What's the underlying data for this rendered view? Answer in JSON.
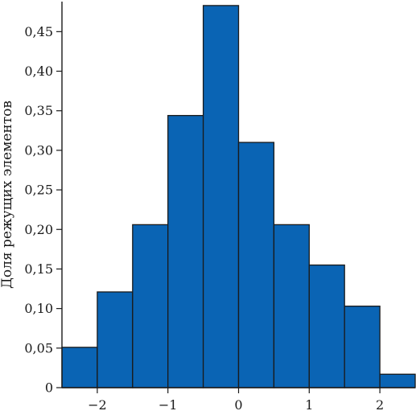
{
  "chart_data": {
    "type": "bar",
    "title": "",
    "xlabel": "",
    "ylabel": "Доля режущих элементов",
    "bar_color": "#0a64b4",
    "edge_color": "#1a1a1a",
    "bins": [
      {
        "x0": -2.5,
        "x1": -2.0,
        "value": 0.051
      },
      {
        "x0": -2.0,
        "x1": -1.5,
        "value": 0.121
      },
      {
        "x0": -1.5,
        "x1": -1.0,
        "value": 0.206
      },
      {
        "x0": -1.0,
        "x1": -0.5,
        "value": 0.344
      },
      {
        "x0": -0.5,
        "x1": 0.0,
        "value": 0.483
      },
      {
        "x0": 0.0,
        "x1": 0.5,
        "value": 0.31
      },
      {
        "x0": 0.5,
        "x1": 1.0,
        "value": 0.206
      },
      {
        "x0": 1.0,
        "x1": 1.5,
        "value": 0.155
      },
      {
        "x0": 1.5,
        "x1": 2.0,
        "value": 0.103
      },
      {
        "x0": 2.0,
        "x1": 2.5,
        "value": 0.017
      }
    ],
    "xlim": [
      -2.5,
      2.5
    ],
    "ylim": [
      0,
      0.49
    ],
    "xticks": [
      -2,
      -1,
      0,
      1,
      2
    ],
    "xtick_labels": [
      "−2",
      "−1",
      "0",
      "1",
      "2"
    ],
    "yticks": [
      0,
      0.05,
      0.1,
      0.15,
      0.2,
      0.25,
      0.3,
      0.35,
      0.4,
      0.45
    ],
    "ytick_labels": [
      "0",
      "0,05",
      "0,10",
      "0,15",
      "0,20",
      "0,25",
      "0,30",
      "0,35",
      "0,40",
      "0,45"
    ],
    "grid": false,
    "legend": "none"
  }
}
